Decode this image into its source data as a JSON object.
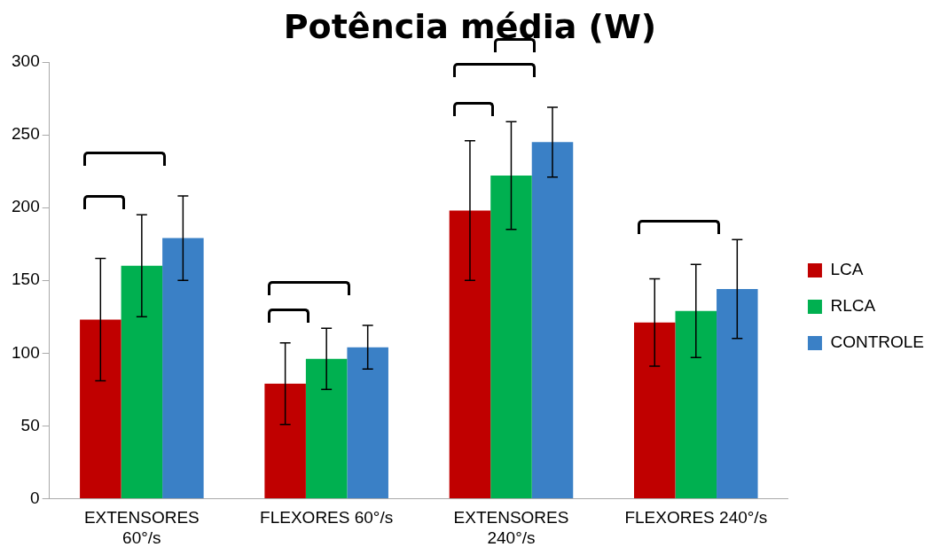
{
  "chart_data": {
    "type": "bar",
    "title": "Potência média (W)",
    "categories": [
      "EXTENSORES 60°/s",
      "FLEXORES 60°/s",
      "EXTENSORES 240°/s",
      "FLEXORES 240°/s"
    ],
    "series": [
      {
        "name": "LCA",
        "color": "#c00000",
        "values": [
          123,
          79,
          198,
          121
        ],
        "errors": [
          42,
          28,
          48,
          30
        ]
      },
      {
        "name": "RLCA",
        "color": "#00b050",
        "values": [
          160,
          96,
          222,
          129
        ],
        "errors": [
          35,
          21,
          37,
          32
        ]
      },
      {
        "name": "CONTROLE",
        "color": "#3a80c6",
        "values": [
          179,
          104,
          245,
          144
        ],
        "errors": [
          29,
          15,
          24,
          34
        ]
      }
    ],
    "ylim": [
      0,
      300
    ],
    "yticks": [
      0,
      50,
      100,
      150,
      200,
      250,
      300
    ],
    "grid": false,
    "legend": "right"
  }
}
